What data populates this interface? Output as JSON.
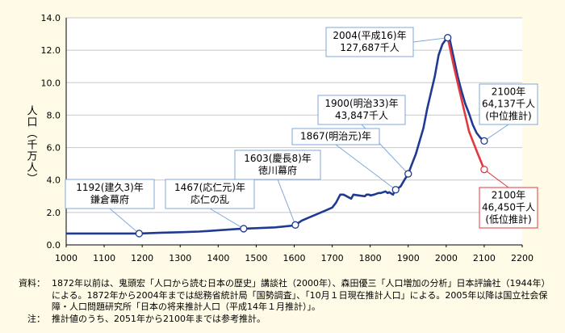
{
  "chart_data": {
    "type": "line",
    "ylabel": "人口（千万人）",
    "xlim": [
      1000,
      2200
    ],
    "ylim": [
      0,
      14
    ],
    "x_ticks": [
      1000,
      1100,
      1200,
      1300,
      1400,
      1500,
      1600,
      1700,
      1800,
      1900,
      2000,
      2100,
      2200
    ],
    "y_ticks": [
      "0.0",
      "2.0",
      "4.0",
      "6.0",
      "8.0",
      "10.0",
      "12.0",
      "14.0"
    ],
    "colors": {
      "actual": "#1f3a93",
      "low": "#e0393f",
      "grid": "#c8c8c8",
      "callout_border": "#7fa7d8"
    },
    "series": [
      {
        "key": "actual",
        "x": [
          1000,
          1100,
          1150,
          1192,
          1250,
          1300,
          1350,
          1400,
          1450,
          1467,
          1500,
          1550,
          1600,
          1603,
          1620,
          1650,
          1680,
          1700,
          1710,
          1721,
          1730,
          1750,
          1756,
          1770,
          1786,
          1790,
          1798,
          1800,
          1810,
          1822,
          1828,
          1834,
          1840,
          1846,
          1850,
          1860,
          1867,
          1872,
          1880,
          1890,
          1900,
          1910,
          1920,
          1930,
          1940,
          1950,
          1960,
          1970,
          1980,
          1990,
          2000,
          2004,
          2010,
          2020,
          2030,
          2040,
          2050,
          2060,
          2070,
          2080,
          2090,
          2100
        ],
        "values": [
          0.7,
          0.7,
          0.7,
          0.7,
          0.75,
          0.78,
          0.82,
          0.9,
          0.98,
          1.0,
          1.03,
          1.08,
          1.2,
          1.23,
          1.5,
          1.8,
          2.1,
          2.3,
          2.6,
          3.1,
          3.1,
          2.85,
          3.1,
          3.05,
          3.0,
          3.1,
          3.1,
          3.05,
          3.1,
          3.2,
          3.2,
          3.25,
          3.3,
          3.2,
          3.25,
          3.1,
          3.4,
          3.48,
          3.6,
          4.0,
          4.38,
          5.0,
          5.6,
          6.4,
          7.2,
          8.4,
          9.4,
          10.4,
          11.7,
          12.36,
          12.69,
          12.77,
          12.6,
          11.5,
          10.4,
          9.5,
          8.7,
          8.1,
          7.4,
          6.9,
          6.6,
          6.41
        ]
      },
      {
        "key": "low",
        "x": [
          2004,
          2020,
          2040,
          2060,
          2080,
          2100
        ],
        "values": [
          12.77,
          11.0,
          9.0,
          7.0,
          5.8,
          4.65
        ]
      }
    ],
    "markers": [
      {
        "x": 1192,
        "y": 0.7,
        "series": "actual"
      },
      {
        "x": 1467,
        "y": 1.0,
        "series": "actual"
      },
      {
        "x": 1603,
        "y": 1.23,
        "series": "actual"
      },
      {
        "x": 1867,
        "y": 3.4,
        "series": "actual"
      },
      {
        "x": 1900,
        "y": 4.38,
        "series": "actual"
      },
      {
        "x": 2004,
        "y": 12.77,
        "series": "actual"
      },
      {
        "x": 2100,
        "y": 6.41,
        "series": "actual"
      },
      {
        "x": 2100,
        "y": 4.65,
        "series": "low"
      }
    ],
    "annotations": [
      {
        "lines": [
          "1192(建久3)年",
          "鎌倉幕府"
        ],
        "x": 1192,
        "y": 0.7
      },
      {
        "lines": [
          "1467(応仁元)年",
          "応仁の乱"
        ],
        "x": 1467,
        "y": 1.0
      },
      {
        "lines": [
          "1603(慶長8)年",
          "徳川幕府"
        ],
        "x": 1603,
        "y": 1.23
      },
      {
        "lines": [
          "1867(明治元)年"
        ],
        "x": 1867,
        "y": 3.4
      },
      {
        "lines": [
          "1900(明治33)年",
          "43,847千人"
        ],
        "x": 1900,
        "y": 4.38
      },
      {
        "lines": [
          "2004(平成16)年",
          "127,687千人"
        ],
        "x": 2004,
        "y": 12.77
      },
      {
        "lines": [
          "2100年",
          "64,137千人",
          "(中位推計)"
        ],
        "x": 2100,
        "y": 6.41
      },
      {
        "lines": [
          "2100年",
          "46,450千人",
          "(低位推計)"
        ],
        "x": 2100,
        "y": 4.65,
        "color": "low"
      }
    ],
    "grid": true,
    "legend": null
  },
  "notes": {
    "source_head": "資料：",
    "source_body": "1872年以前は、鬼頭宏「人口から読む日本の歴史」講談社（2000年）、森田優三「人口増加の分析」日本評論社（1944年）による。1872年から2004年までは総務省統計局「国勢調査」、「10月１日現在推計人口」による。2005年以降は国立社会保障・人口問題研究所「日本の将来推計人口（平成14年１月推計）」。",
    "note_head": "注：",
    "note_body": "推計値のうち、2051年から2100年までは参考推計。"
  }
}
